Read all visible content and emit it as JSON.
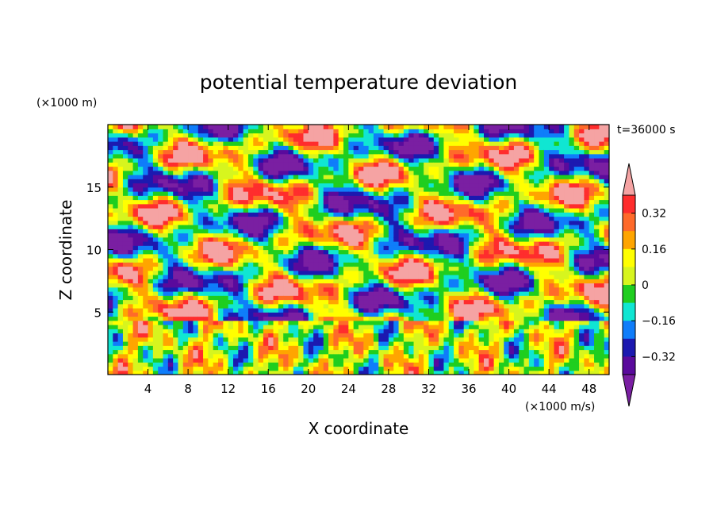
{
  "chart_data": {
    "type": "heatmap",
    "title": "potential temperature deviation",
    "xlabel": "X coordinate",
    "ylabel": "Z coordinate",
    "x_unit": "(×1000 m/s)",
    "y_unit": "(×1000 m)",
    "time_label": "t=36000 s",
    "xlim": [
      0,
      50
    ],
    "ylim": [
      0,
      20
    ],
    "x_ticks": [
      4,
      8,
      12,
      16,
      20,
      24,
      28,
      32,
      36,
      40,
      44,
      48
    ],
    "y_ticks": [
      5,
      10,
      15
    ],
    "colorbar": {
      "levels": [
        -0.4,
        -0.32,
        -0.24,
        -0.16,
        -0.08,
        0,
        0.08,
        0.16,
        0.24,
        0.32,
        0.4
      ],
      "tick_labels": [
        "0.32",
        "0.16",
        "0",
        "−0.16",
        "−0.32"
      ],
      "tick_values": [
        0.32,
        0.16,
        0,
        -0.16,
        -0.32
      ],
      "colors": [
        "#7a1fa2",
        "#5a0a9c",
        "#1c19b0",
        "#0f7dfa",
        "#10e6d2",
        "#1fce1f",
        "#d7f51e",
        "#ffff00",
        "#ffa500",
        "#ff6a2a",
        "#ff2d2d",
        "#f5a3a3"
      ],
      "extend": "both"
    }
  }
}
